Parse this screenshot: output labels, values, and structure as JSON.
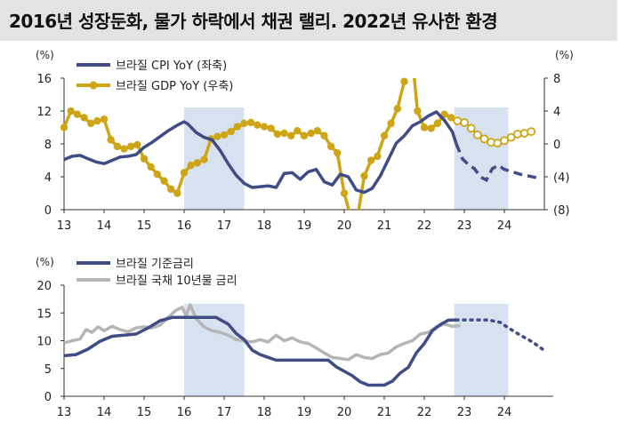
{
  "title": "2016년 성장둔화, 물가 하락에서 채권 랠리. 2022년 유사한 환경",
  "chart_data": [
    {
      "type": "line",
      "x_ticks": [
        "13",
        "14",
        "15",
        "16",
        "17",
        "18",
        "19",
        "20",
        "21",
        "22",
        "23",
        "24"
      ],
      "xlim": [
        2013.0,
        2025.0
      ],
      "y_left": {
        "unit": "(%)",
        "lim": [
          0,
          16
        ],
        "ticks": [
          "0",
          "4",
          "8",
          "12",
          "16"
        ]
      },
      "y_right": {
        "unit": "(%)",
        "lim": [
          -8,
          8
        ],
        "ticks": [
          "(8)",
          "(4)",
          "0",
          "4",
          "8"
        ]
      },
      "shaded_periods": [
        [
          2016.0,
          2017.5
        ],
        [
          2022.75,
          2024.1
        ]
      ],
      "colors": {
        "cpi": "#3f4d84",
        "gdp": "#cda516",
        "shade": "#d7e2f0"
      },
      "series": [
        {
          "name": "브라질 CPI YoY (좌축)",
          "axis": "left",
          "style": "solid",
          "x": [
            2013.0,
            2013.2,
            2013.4,
            2013.6,
            2013.8,
            2014.0,
            2014.2,
            2014.4,
            2014.6,
            2014.8,
            2015.0,
            2015.2,
            2015.4,
            2015.6,
            2015.8,
            2016.0,
            2016.1,
            2016.3,
            2016.5,
            2016.7,
            2016.9,
            2017.1,
            2017.3,
            2017.5,
            2017.7,
            2017.9,
            2018.1,
            2018.3,
            2018.5,
            2018.7,
            2018.9,
            2019.1,
            2019.3,
            2019.5,
            2019.7,
            2019.9,
            2020.1,
            2020.3,
            2020.5,
            2020.7,
            2020.9,
            2021.1,
            2021.3,
            2021.5,
            2021.7,
            2021.9,
            2022.1,
            2022.3,
            2022.5,
            2022.7,
            2022.8
          ],
          "y": [
            6.1,
            6.5,
            6.6,
            6.2,
            5.8,
            5.6,
            6.0,
            6.4,
            6.5,
            6.7,
            7.6,
            8.2,
            8.9,
            9.6,
            10.2,
            10.7,
            10.4,
            9.4,
            8.8,
            8.5,
            7.2,
            5.6,
            4.2,
            3.2,
            2.7,
            2.8,
            2.9,
            2.7,
            4.4,
            4.5,
            3.7,
            4.6,
            4.9,
            3.4,
            3.0,
            4.3,
            4.0,
            2.4,
            2.1,
            2.6,
            4.1,
            6.1,
            8.1,
            9.0,
            10.2,
            10.7,
            11.4,
            11.9,
            10.9,
            9.5,
            8.0
          ]
        },
        {
          "name": "브라질 CPI YoY (좌축) forecast",
          "axis": "left",
          "style": "dashed",
          "x": [
            2022.8,
            2022.95,
            2023.1,
            2023.25,
            2023.4,
            2023.55,
            2023.7,
            2023.85,
            2024.0,
            2024.2,
            2024.4,
            2024.6,
            2024.9
          ],
          "y": [
            8.0,
            6.2,
            5.5,
            5.0,
            4.0,
            3.6,
            5.0,
            5.4,
            4.9,
            4.6,
            4.3,
            4.1,
            3.8
          ]
        },
        {
          "name": "브라질 GDP YoY (우축)",
          "axis": "right",
          "style": "solid-marker",
          "x": [
            2013.0,
            2013.17,
            2013.33,
            2013.5,
            2013.67,
            2013.83,
            2014.0,
            2014.17,
            2014.33,
            2014.5,
            2014.67,
            2014.83,
            2015.0,
            2015.17,
            2015.33,
            2015.5,
            2015.67,
            2015.83,
            2016.0,
            2016.17,
            2016.33,
            2016.5,
            2016.67,
            2016.83,
            2017.0,
            2017.17,
            2017.33,
            2017.5,
            2017.67,
            2017.83,
            2018.0,
            2018.17,
            2018.33,
            2018.5,
            2018.67,
            2018.83,
            2019.0,
            2019.17,
            2019.33,
            2019.5,
            2019.67,
            2019.83,
            2020.0,
            2020.17,
            2020.33,
            2020.5,
            2020.67,
            2020.83,
            2021.0,
            2021.17,
            2021.33,
            2021.5,
            2021.67,
            2021.83,
            2022.0,
            2022.17,
            2022.33,
            2022.5,
            2022.67,
            2022.83
          ],
          "y": [
            2.0,
            4.0,
            3.6,
            3.2,
            2.5,
            2.8,
            3.0,
            0.5,
            -0.3,
            -0.6,
            -0.3,
            -0.1,
            -1.8,
            -2.8,
            -3.7,
            -4.5,
            -5.5,
            -6.0,
            -3.5,
            -2.6,
            -2.3,
            -1.9,
            0.6,
            0.9,
            1.1,
            1.5,
            2.1,
            2.5,
            2.6,
            2.3,
            2.1,
            1.9,
            1.2,
            1.3,
            1.0,
            1.6,
            1.0,
            1.3,
            1.6,
            1.0,
            -0.3,
            -1.1,
            -6.0,
            -9.0,
            -9.0,
            -3.9,
            -2.0,
            -1.5,
            1.0,
            2.5,
            4.3,
            7.6,
            12.0,
            4.0,
            2.0,
            1.9,
            2.5,
            3.6,
            3.2,
            2.8
          ]
        },
        {
          "name": "브라질 GDP YoY (우축) forecast",
          "axis": "right",
          "style": "hollow-marker",
          "x": [
            2022.83,
            2023.0,
            2023.17,
            2023.33,
            2023.5,
            2023.67,
            2023.83,
            2024.0,
            2024.17,
            2024.33,
            2024.5,
            2024.67
          ],
          "y": [
            2.8,
            2.6,
            1.9,
            1.1,
            0.6,
            0.2,
            0.1,
            0.4,
            0.8,
            1.2,
            1.3,
            1.5
          ]
        }
      ]
    },
    {
      "type": "line",
      "x_ticks": [
        "13",
        "14",
        "15",
        "16",
        "17",
        "18",
        "19",
        "20",
        "21",
        "22",
        "23",
        "24"
      ],
      "xlim": [
        2013.0,
        2025.0
      ],
      "y_left": {
        "unit": "(%)",
        "lim": [
          0,
          20
        ],
        "ticks": [
          "0",
          "5",
          "10",
          "15",
          "20"
        ]
      },
      "shaded_periods": [
        [
          2016.0,
          2017.5
        ],
        [
          2022.75,
          2024.1
        ]
      ],
      "colors": {
        "policy": "#3f4d84",
        "bond": "#b5b5b5",
        "shade": "#d7e2f0"
      },
      "series": [
        {
          "name": "브라질 기준금리",
          "style": "solid",
          "x": [
            2013.0,
            2013.3,
            2013.6,
            2013.9,
            2014.2,
            2014.5,
            2014.8,
            2015.1,
            2015.4,
            2015.7,
            2016.0,
            2016.4,
            2016.8,
            2016.9,
            2017.1,
            2017.3,
            2017.5,
            2017.7,
            2017.9,
            2018.1,
            2018.3,
            2019.6,
            2019.8,
            2020.0,
            2020.2,
            2020.4,
            2020.6,
            2021.0,
            2021.2,
            2021.4,
            2021.6,
            2021.8,
            2022.0,
            2022.2,
            2022.4,
            2022.6,
            2022.8
          ],
          "y": [
            7.3,
            7.5,
            8.5,
            9.9,
            10.8,
            11.0,
            11.2,
            12.3,
            13.6,
            14.2,
            14.2,
            14.2,
            14.2,
            13.8,
            13.0,
            11.3,
            10.2,
            8.3,
            7.5,
            7.0,
            6.5,
            6.5,
            5.3,
            4.5,
            3.7,
            2.6,
            2.0,
            2.0,
            2.7,
            4.2,
            5.2,
            7.8,
            9.5,
            11.8,
            12.9,
            13.7,
            13.75
          ]
        },
        {
          "name": "브라질 기준금리 forecast",
          "style": "dotted",
          "x": [
            2022.8,
            2023.0,
            2023.3,
            2023.6,
            2023.9,
            2024.1,
            2024.4,
            2024.7,
            2024.95
          ],
          "y": [
            13.75,
            13.75,
            13.75,
            13.75,
            13.3,
            12.3,
            11.0,
            9.8,
            8.5
          ]
        },
        {
          "name": "브라질 국채 10년물 금리",
          "style": "solid",
          "x": [
            2013.0,
            2013.2,
            2013.4,
            2013.55,
            2013.7,
            2013.85,
            2014.0,
            2014.2,
            2014.4,
            2014.6,
            2014.8,
            2015.0,
            2015.2,
            2015.4,
            2015.6,
            2015.8,
            2015.95,
            2016.05,
            2016.15,
            2016.3,
            2016.5,
            2016.7,
            2016.9,
            2017.1,
            2017.3,
            2017.5,
            2017.7,
            2017.9,
            2018.1,
            2018.3,
            2018.5,
            2018.7,
            2018.9,
            2019.1,
            2019.3,
            2019.5,
            2019.7,
            2019.9,
            2020.1,
            2020.3,
            2020.5,
            2020.7,
            2020.9,
            2021.1,
            2021.3,
            2021.5,
            2021.7,
            2021.9,
            2022.1,
            2022.3,
            2022.5,
            2022.7,
            2022.9
          ],
          "y": [
            9.6,
            10.0,
            10.3,
            12.0,
            11.5,
            12.5,
            11.8,
            12.6,
            12.0,
            11.6,
            12.3,
            12.5,
            12.3,
            12.8,
            14.2,
            15.5,
            16.0,
            14.5,
            16.5,
            14.0,
            12.5,
            11.8,
            11.5,
            11.0,
            10.2,
            10.0,
            9.8,
            10.2,
            9.8,
            11.0,
            10.0,
            10.5,
            9.8,
            9.5,
            8.7,
            7.8,
            7.0,
            6.8,
            6.6,
            7.5,
            7.0,
            6.8,
            7.5,
            7.8,
            8.9,
            9.5,
            10.0,
            11.2,
            11.5,
            12.5,
            13.0,
            12.6,
            12.7
          ]
        }
      ]
    }
  ]
}
